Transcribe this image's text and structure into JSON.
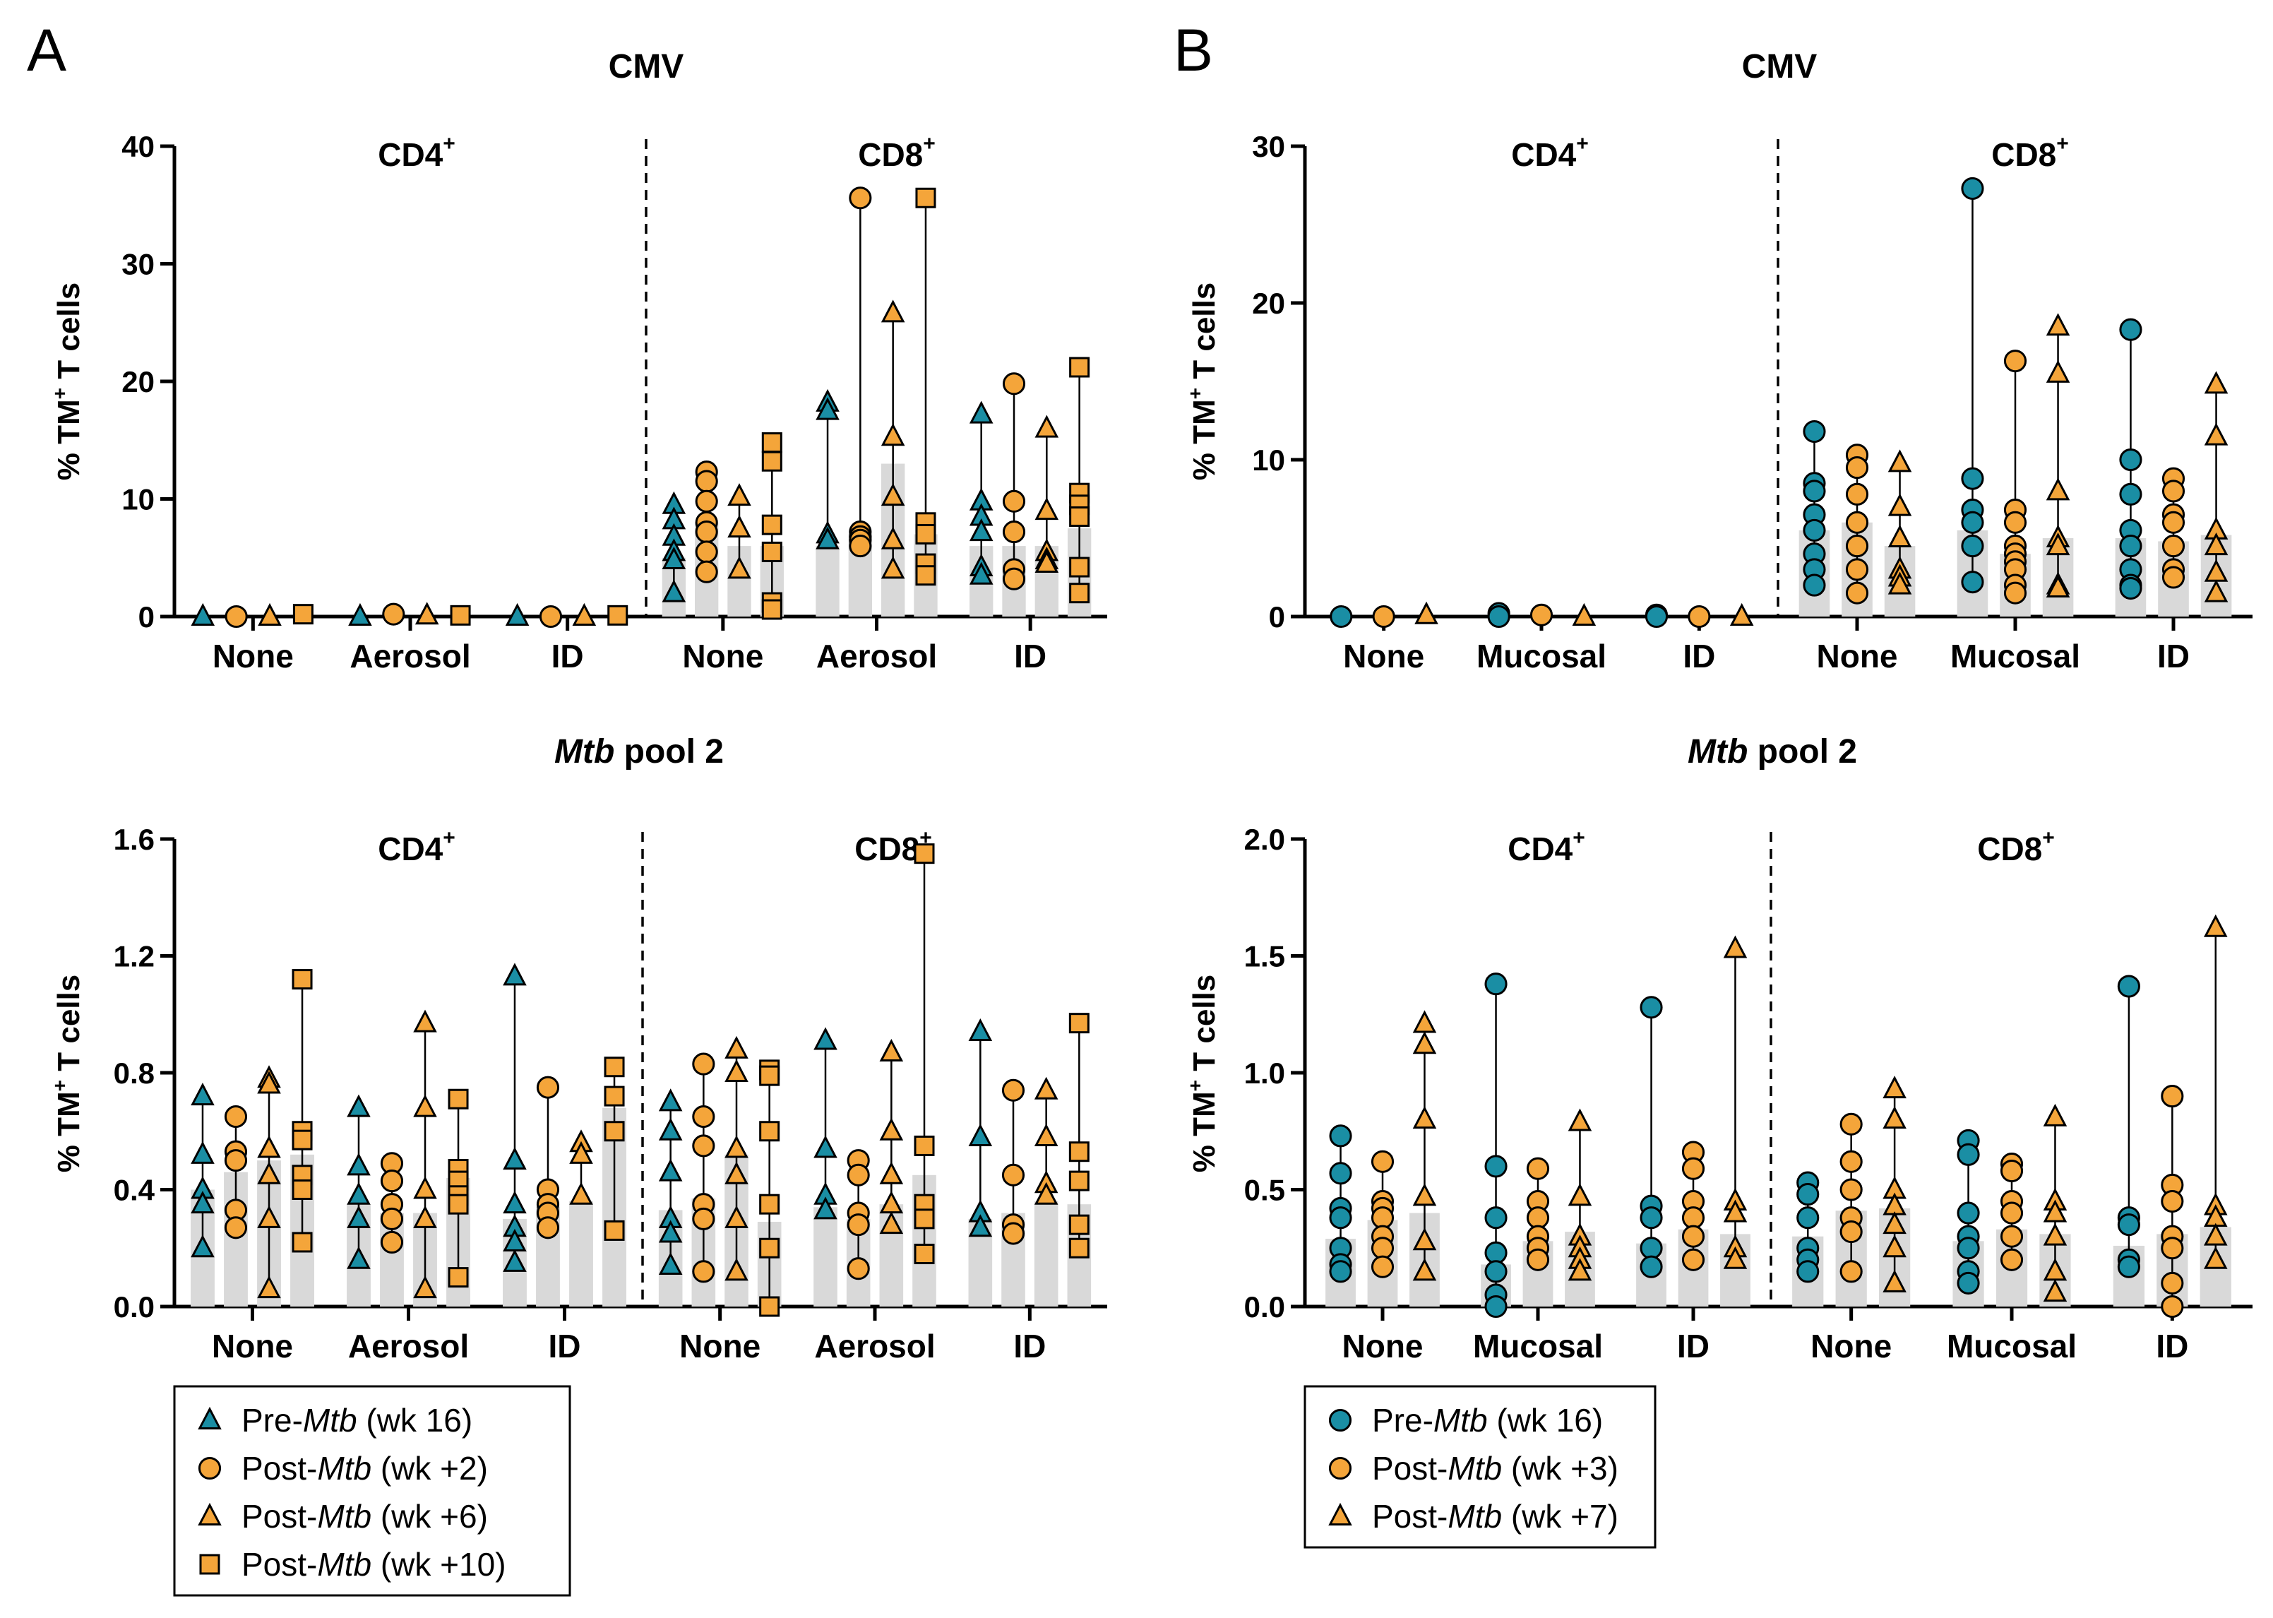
{
  "panel_labels": [
    "A",
    "B"
  ],
  "colors": {
    "teal": "#1a8ea4",
    "orange": "#f4a53a",
    "bar": "#d9d9d9",
    "stroke": "#000000"
  },
  "legends": {
    "A": [
      {
        "marker": "triangle",
        "color": "#1a8ea4",
        "pre": "Pre-",
        "italic": "Mtb",
        "post": " (wk 16)"
      },
      {
        "marker": "circle",
        "color": "#f4a53a",
        "pre": "Post-",
        "italic": "Mtb",
        "post": " (wk +2)"
      },
      {
        "marker": "triangle",
        "color": "#f4a53a",
        "pre": "Post-",
        "italic": "Mtb",
        "post": " (wk +6)"
      },
      {
        "marker": "square",
        "color": "#f4a53a",
        "pre": "Post-",
        "italic": "Mtb",
        "post": " (wk +10)"
      }
    ],
    "B": [
      {
        "marker": "circle",
        "color": "#1a8ea4",
        "pre": "Pre-",
        "italic": "Mtb",
        "post": " (wk 16)"
      },
      {
        "marker": "circle",
        "color": "#f4a53a",
        "pre": "Post-",
        "italic": "Mtb",
        "post": " (wk +3)"
      },
      {
        "marker": "triangle",
        "color": "#f4a53a",
        "pre": "Post-",
        "italic": "Mtb",
        "post": " (wk +7)"
      }
    ]
  },
  "chart_data": [
    {
      "id": "A-cmv",
      "panel": "A",
      "type": "scatter",
      "title": {
        "italic": "",
        "text": "CMV"
      },
      "ylabel": "% TM+ T cells",
      "ylim": [
        0,
        40
      ],
      "yticks": [
        "0",
        "10",
        "20",
        "30",
        "40"
      ],
      "groups": [
        "CD4+",
        "CD8+"
      ],
      "categories": [
        "None",
        "Aerosol",
        "ID",
        "None",
        "Aerosol",
        "ID"
      ],
      "series": [
        {
          "name": "Pre-Mtb (wk 16)",
          "marker": "triangle",
          "color": "#1a8ea4"
        },
        {
          "name": "Post-Mtb (wk +2)",
          "marker": "circle",
          "color": "#f4a53a"
        },
        {
          "name": "Post-Mtb (wk +6)",
          "marker": "triangle",
          "color": "#f4a53a"
        },
        {
          "name": "Post-Mtb (wk +10)",
          "marker": "square",
          "color": "#f4a53a"
        }
      ],
      "data": [
        [
          {
            "bar": 0,
            "pts": [
              0
            ]
          },
          {
            "bar": 0,
            "pts": [
              0
            ]
          },
          {
            "bar": 0,
            "pts": [
              0
            ]
          },
          {
            "bar": 0,
            "pts": [
              0.2
            ]
          }
        ],
        [
          {
            "bar": 0,
            "pts": [
              0
            ]
          },
          {
            "bar": 0,
            "pts": [
              0.2
            ]
          },
          {
            "bar": 0,
            "pts": [
              0.1
            ]
          },
          {
            "bar": 0,
            "pts": [
              0.1
            ]
          }
        ],
        [
          {
            "bar": 0,
            "pts": [
              0
            ]
          },
          {
            "bar": 0,
            "pts": [
              0
            ]
          },
          {
            "bar": 0,
            "pts": [
              0
            ]
          },
          {
            "bar": 0,
            "pts": [
              0.1
            ]
          }
        ],
        [
          {
            "bar": 5,
            "pts": [
              9.5,
              8.2,
              6.8,
              5.5,
              4.8,
              2
            ]
          },
          {
            "bar": 8,
            "pts": [
              12.3,
              11.5,
              9.8,
              8,
              7.2,
              5.5,
              3.8
            ]
          },
          {
            "bar": 6,
            "pts": [
              10.2,
              7.5,
              4
            ]
          },
          {
            "bar": 6,
            "pts": [
              14.8,
              13.2,
              7.8,
              5.5,
              1.2,
              0.6
            ]
          }
        ],
        [
          {
            "bar": 6,
            "pts": [
              18.2,
              17.5,
              7,
              6.5
            ]
          },
          {
            "bar": 7,
            "pts": [
              35.6,
              7.2,
              6.8,
              6.5,
              6
            ]
          },
          {
            "bar": 13,
            "pts": [
              25.8,
              15.3,
              10.2,
              6.5,
              4
            ]
          },
          {
            "bar": 7,
            "pts": [
              35.6,
              8,
              7,
              4.5,
              3.5
            ]
          }
        ],
        [
          {
            "bar": 6,
            "pts": [
              17.2,
              9.8,
              8.5,
              7.2,
              4.2,
              3.5
            ]
          },
          {
            "bar": 6,
            "pts": [
              19.8,
              9.8,
              7.2,
              4,
              3.2
            ]
          },
          {
            "bar": 6,
            "pts": [
              16,
              9,
              5.5,
              4.8,
              4.5
            ]
          },
          {
            "bar": 7.5,
            "pts": [
              21.2,
              10.5,
              9.5,
              8.5,
              4.2,
              2
            ]
          }
        ]
      ]
    },
    {
      "id": "A-mtb",
      "panel": "A",
      "type": "scatter",
      "title": {
        "italic": "Mtb",
        "text": " pool 2"
      },
      "ylabel": "% TM+ T cells",
      "ylim": [
        0,
        1.6
      ],
      "yticks": [
        "0.0",
        "0.4",
        "0.8",
        "1.2",
        "1.6"
      ],
      "groups": [
        "CD4+",
        "CD8+"
      ],
      "categories": [
        "None",
        "Aerosol",
        "ID",
        "None",
        "Aerosol",
        "ID"
      ],
      "series": [
        {
          "name": "Pre-Mtb (wk 16)",
          "marker": "triangle",
          "color": "#1a8ea4"
        },
        {
          "name": "Post-Mtb (wk +2)",
          "marker": "circle",
          "color": "#f4a53a"
        },
        {
          "name": "Post-Mtb (wk +6)",
          "marker": "triangle",
          "color": "#f4a53a"
        },
        {
          "name": "Post-Mtb (wk +10)",
          "marker": "square",
          "color": "#f4a53a"
        }
      ],
      "data": [
        [
          {
            "bar": 0.4,
            "pts": [
              0.72,
              0.52,
              0.4,
              0.35,
              0.2
            ]
          },
          {
            "bar": 0.46,
            "pts": [
              0.65,
              0.53,
              0.5,
              0.33,
              0.27
            ]
          },
          {
            "bar": 0.5,
            "pts": [
              0.78,
              0.76,
              0.54,
              0.45,
              0.3,
              0.06
            ]
          },
          {
            "bar": 0.52,
            "pts": [
              1.12,
              0.6,
              0.57,
              0.45,
              0.4,
              0.22
            ]
          }
        ],
        [
          {
            "bar": 0.35,
            "pts": [
              0.68,
              0.48,
              0.38,
              0.3,
              0.16
            ]
          },
          {
            "bar": 0.32,
            "pts": [
              0.49,
              0.43,
              0.35,
              0.3,
              0.22
            ]
          },
          {
            "bar": 0.32,
            "pts": [
              0.97,
              0.68,
              0.4,
              0.3,
              0.06
            ]
          },
          {
            "bar": 0.44,
            "pts": [
              0.71,
              0.47,
              0.43,
              0.38,
              0.35,
              0.1
            ]
          }
        ],
        [
          {
            "bar": 0.3,
            "pts": [
              1.13,
              0.5,
              0.35,
              0.27,
              0.22,
              0.15
            ]
          },
          {
            "bar": 0.34,
            "pts": [
              0.75,
              0.4,
              0.35,
              0.32,
              0.27
            ]
          },
          {
            "bar": 0.36,
            "pts": [
              0.56,
              0.52,
              0.38
            ]
          },
          {
            "bar": 0.68,
            "pts": [
              0.82,
              0.72,
              0.6,
              0.26
            ]
          }
        ],
        [
          {
            "bar": 0.33,
            "pts": [
              0.7,
              0.6,
              0.46,
              0.3,
              0.25,
              0.14
            ]
          },
          {
            "bar": 0.37,
            "pts": [
              0.83,
              0.65,
              0.55,
              0.35,
              0.3,
              0.12
            ]
          },
          {
            "bar": 0.52,
            "pts": [
              0.88,
              0.8,
              0.54,
              0.45,
              0.3,
              0.12
            ]
          },
          {
            "bar": 0.29,
            "pts": [
              0.81,
              0.79,
              0.6,
              0.35,
              0.2,
              0.0
            ]
          }
        ],
        [
          {
            "bar": 0.34,
            "pts": [
              0.91,
              0.54,
              0.38,
              0.33
            ]
          },
          {
            "bar": 0.3,
            "pts": [
              0.5,
              0.45,
              0.32,
              0.28,
              0.13
            ]
          },
          {
            "bar": 0.35,
            "pts": [
              0.87,
              0.6,
              0.45,
              0.35,
              0.28
            ]
          },
          {
            "bar": 0.45,
            "pts": [
              1.55,
              0.55,
              0.35,
              0.3,
              0.18
            ]
          }
        ],
        [
          {
            "bar": 0.3,
            "pts": [
              0.94,
              0.58,
              0.32,
              0.27
            ]
          },
          {
            "bar": 0.32,
            "pts": [
              0.74,
              0.45,
              0.28,
              0.25
            ]
          },
          {
            "bar": 0.36,
            "pts": [
              0.74,
              0.58,
              0.42,
              0.38
            ]
          },
          {
            "bar": 0.35,
            "pts": [
              0.97,
              0.53,
              0.43,
              0.28,
              0.2
            ]
          }
        ]
      ]
    },
    {
      "id": "B-cmv",
      "panel": "B",
      "type": "scatter",
      "title": {
        "italic": "",
        "text": "CMV"
      },
      "ylabel": "% TM+ T cells",
      "ylim": [
        0,
        30
      ],
      "yticks": [
        "0",
        "10",
        "20",
        "30"
      ],
      "groups": [
        "CD4+",
        "CD8+"
      ],
      "categories": [
        "None",
        "Mucosal",
        "ID",
        "None",
        "Mucosal",
        "ID"
      ],
      "series": [
        {
          "name": "Pre-Mtb (wk 16)",
          "marker": "circle",
          "color": "#1a8ea4"
        },
        {
          "name": "Post-Mtb (wk +3)",
          "marker": "circle",
          "color": "#f4a53a"
        },
        {
          "name": "Post-Mtb (wk +7)",
          "marker": "triangle",
          "color": "#f4a53a"
        }
      ],
      "data": [
        [
          {
            "bar": 0,
            "pts": [
              0
            ]
          },
          {
            "bar": 0,
            "pts": [
              0
            ]
          },
          {
            "bar": 0,
            "pts": [
              0.1
            ]
          }
        ],
        [
          {
            "bar": 0,
            "pts": [
              0.2,
              0
            ]
          },
          {
            "bar": 0,
            "pts": [
              0.1
            ]
          },
          {
            "bar": 0,
            "pts": [
              0
            ]
          }
        ],
        [
          {
            "bar": 0,
            "pts": [
              0.1,
              0
            ]
          },
          {
            "bar": 0,
            "pts": [
              0
            ]
          },
          {
            "bar": 0,
            "pts": [
              0
            ]
          }
        ],
        [
          {
            "bar": 5.5,
            "pts": [
              11.8,
              8.5,
              8,
              6.5,
              5.5,
              4,
              3,
              2
            ]
          },
          {
            "bar": 6,
            "pts": [
              10.3,
              9.5,
              7.8,
              6,
              4.5,
              3,
              1.5
            ]
          },
          {
            "bar": 4.5,
            "pts": [
              9.8,
              7,
              5,
              3,
              2.5,
              2
            ]
          }
        ],
        [
          {
            "bar": 5.5,
            "pts": [
              27.3,
              8.8,
              6.8,
              6,
              4.5,
              2.2
            ]
          },
          {
            "bar": 4,
            "pts": [
              16.3,
              6.8,
              6,
              4.5,
              4,
              3.5,
              3,
              2,
              1.5
            ]
          },
          {
            "bar": 5,
            "pts": [
              18.5,
              15.5,
              8,
              5,
              4.5,
              2,
              1.8
            ]
          }
        ],
        [
          {
            "bar": 5,
            "pts": [
              18.3,
              10,
              7.8,
              5.5,
              4.5,
              3,
              2,
              1.8
            ]
          },
          {
            "bar": 4.8,
            "pts": [
              8.8,
              8,
              6.5,
              6,
              4.5,
              3,
              2.5
            ]
          },
          {
            "bar": 5.2,
            "pts": [
              14.8,
              11.5,
              5.5,
              4.5,
              2.8,
              1.5
            ]
          }
        ]
      ]
    },
    {
      "id": "B-mtb",
      "panel": "B",
      "type": "scatter",
      "title": {
        "italic": "Mtb",
        "text": " pool 2"
      },
      "ylabel": "% TM+ T cells",
      "ylim": [
        0,
        2
      ],
      "yticks": [
        "0.0",
        "0.5",
        "1.0",
        "1.5",
        "2.0"
      ],
      "groups": [
        "CD4+",
        "CD8+"
      ],
      "categories": [
        "None",
        "Mucosal",
        "ID",
        "None",
        "Mucosal",
        "ID"
      ],
      "series": [
        {
          "name": "Pre-Mtb (wk 16)",
          "marker": "circle",
          "color": "#1a8ea4"
        },
        {
          "name": "Post-Mtb (wk +3)",
          "marker": "circle",
          "color": "#f4a53a"
        },
        {
          "name": "Post-Mtb (wk +7)",
          "marker": "triangle",
          "color": "#f4a53a"
        }
      ],
      "data": [
        [
          {
            "bar": 0.29,
            "pts": [
              0.73,
              0.57,
              0.42,
              0.38,
              0.25,
              0.18,
              0.15
            ]
          },
          {
            "bar": 0.37,
            "pts": [
              0.62,
              0.45,
              0.42,
              0.38,
              0.3,
              0.25,
              0.17
            ]
          },
          {
            "bar": 0.4,
            "pts": [
              1.21,
              1.12,
              0.8,
              0.47,
              0.28,
              0.15
            ]
          }
        ],
        [
          {
            "bar": 0.18,
            "pts": [
              1.38,
              0.6,
              0.38,
              0.23,
              0.15,
              0.05,
              0.0
            ]
          },
          {
            "bar": 0.28,
            "pts": [
              0.59,
              0.45,
              0.38,
              0.3,
              0.25,
              0.2
            ]
          },
          {
            "bar": 0.32,
            "pts": [
              0.79,
              0.47,
              0.3,
              0.25,
              0.2,
              0.15
            ]
          }
        ],
        [
          {
            "bar": 0.27,
            "pts": [
              1.28,
              0.43,
              0.38,
              0.25,
              0.17
            ]
          },
          {
            "bar": 0.33,
            "pts": [
              0.66,
              0.59,
              0.45,
              0.38,
              0.3,
              0.2
            ]
          },
          {
            "bar": 0.31,
            "pts": [
              1.53,
              0.45,
              0.4,
              0.25,
              0.2
            ]
          }
        ],
        [
          {
            "bar": 0.3,
            "pts": [
              0.53,
              0.48,
              0.38,
              0.25,
              0.2,
              0.15
            ]
          },
          {
            "bar": 0.41,
            "pts": [
              0.78,
              0.62,
              0.5,
              0.38,
              0.32,
              0.15
            ]
          },
          {
            "bar": 0.42,
            "pts": [
              0.93,
              0.8,
              0.5,
              0.43,
              0.35,
              0.25,
              0.1
            ]
          }
        ],
        [
          {
            "bar": 0.28,
            "pts": [
              0.71,
              0.65,
              0.4,
              0.3,
              0.25,
              0.15,
              0.1
            ]
          },
          {
            "bar": 0.33,
            "pts": [
              0.61,
              0.58,
              0.45,
              0.4,
              0.3,
              0.2
            ]
          },
          {
            "bar": 0.31,
            "pts": [
              0.81,
              0.45,
              0.4,
              0.3,
              0.15,
              0.06
            ]
          }
        ],
        [
          {
            "bar": 0.26,
            "pts": [
              1.37,
              0.38,
              0.35,
              0.2,
              0.17
            ]
          },
          {
            "bar": 0.31,
            "pts": [
              0.9,
              0.52,
              0.45,
              0.3,
              0.25,
              0.1,
              0.0
            ]
          },
          {
            "bar": 0.34,
            "pts": [
              1.62,
              0.43,
              0.38,
              0.3,
              0.2
            ]
          }
        ]
      ]
    }
  ]
}
